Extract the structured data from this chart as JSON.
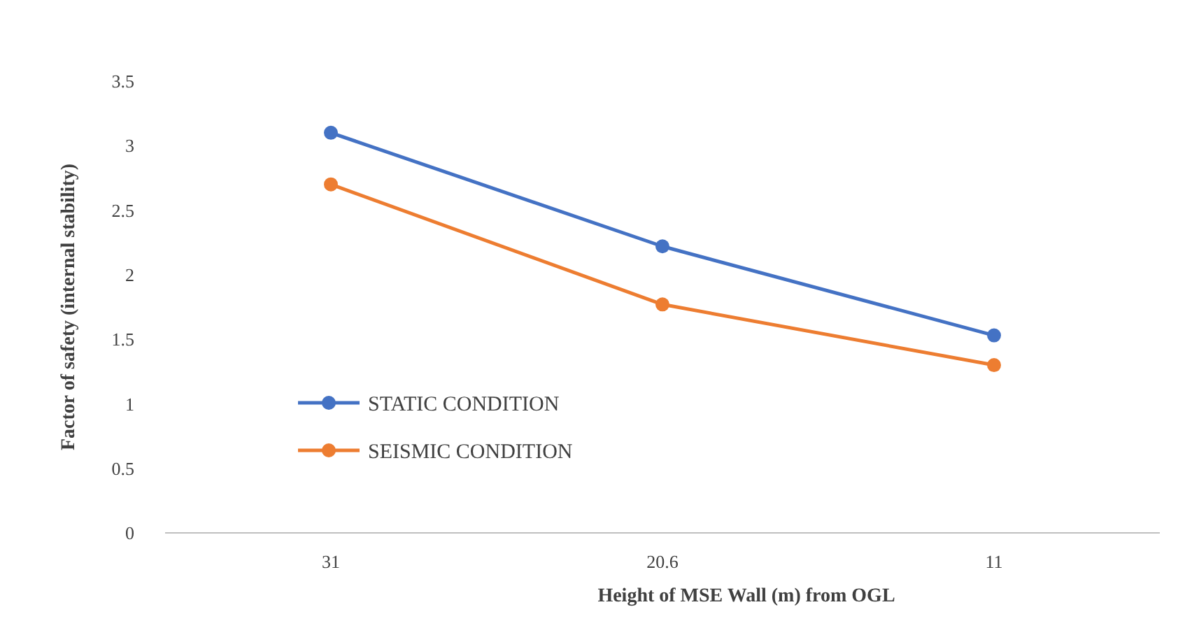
{
  "chart_data": {
    "type": "line",
    "xlabel": "Height of MSE Wall (m) from OGL",
    "ylabel": "Factor of safety (internal stability)",
    "categories": [
      "31",
      "20.6",
      "11"
    ],
    "series": [
      {
        "name": "STATIC CONDITION",
        "color": "#4472c4",
        "values": [
          3.1,
          2.22,
          1.53
        ]
      },
      {
        "name": "SEISMIC CONDITION",
        "color": "#ed7d31",
        "values": [
          2.7,
          1.77,
          1.3
        ]
      }
    ],
    "ylim": [
      0,
      3.5
    ],
    "yticks": [
      0,
      0.5,
      1,
      1.5,
      2,
      2.5,
      3,
      3.5
    ],
    "grid": false,
    "legend": "bottom left",
    "marker": "circle",
    "line_style": "solid"
  }
}
